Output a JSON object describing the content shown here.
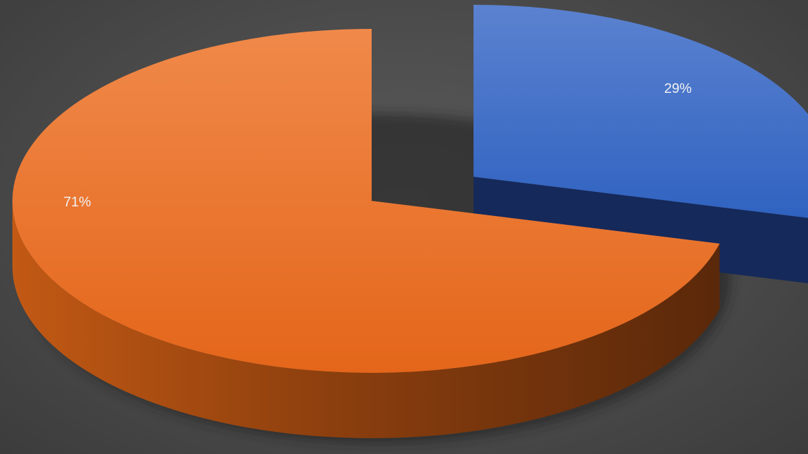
{
  "chart_data": {
    "type": "pie",
    "style": "3d-exploded",
    "title": "",
    "slices": [
      {
        "label": "71%",
        "value": 71,
        "color": "#ed7d31"
      },
      {
        "label": "29%",
        "value": 29,
        "color": "#4472c4"
      }
    ],
    "data_labels": [
      "71%",
      "29%"
    ],
    "legend": "none"
  }
}
